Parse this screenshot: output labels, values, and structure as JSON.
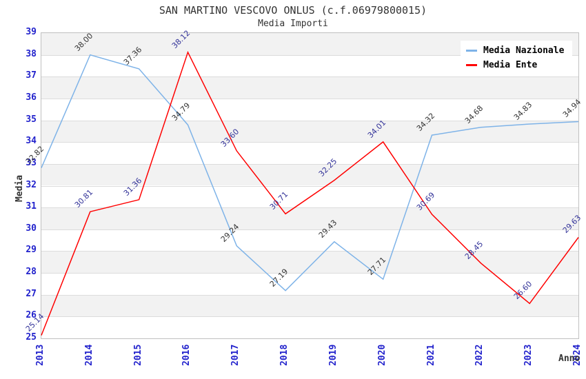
{
  "chart": {
    "title": "SAN MARTINO VESCOVO ONLUS (c.f.06979800015)",
    "subtitle": "Media Importi",
    "y_axis_label": "Media",
    "x_axis_label": "Anno"
  },
  "chart_data": {
    "type": "line",
    "title": "SAN MARTINO VESCOVO ONLUS (c.f.06979800015)",
    "subtitle": "Media Importi",
    "xlabel": "Anno",
    "ylabel": "Media",
    "x": [
      2013,
      2014,
      2015,
      2016,
      2017,
      2018,
      2019,
      2020,
      2021,
      2022,
      2023,
      2024
    ],
    "series": [
      {
        "name": "Media Nazionale",
        "color": "#7EB3E8",
        "label_color": "#333333",
        "values": [
          32.82,
          38.0,
          37.36,
          34.79,
          29.24,
          27.19,
          29.43,
          27.71,
          34.32,
          34.68,
          34.83,
          34.94
        ]
      },
      {
        "name": "Media Ente",
        "color": "#FF0000",
        "label_color": "#333399",
        "values": [
          25.14,
          30.81,
          31.36,
          38.12,
          33.6,
          30.71,
          32.25,
          34.01,
          30.69,
          28.45,
          26.6,
          29.63
        ]
      }
    ],
    "ylim": [
      25,
      39
    ],
    "ytick_step": 1,
    "grid": "horizontal gridlines with alternating white/gray unit bands",
    "legend_position": "top-right",
    "point_labels": "each point labeled with value to 2 decimals, rotated 45deg",
    "styles": {
      "tick_label_color": "#2222CC",
      "band_gray_color": "#F2F2F2",
      "gridline_color": "#DCDCDC",
      "plot_border_color": "#C0C0C0",
      "title_color": "#333333"
    }
  }
}
